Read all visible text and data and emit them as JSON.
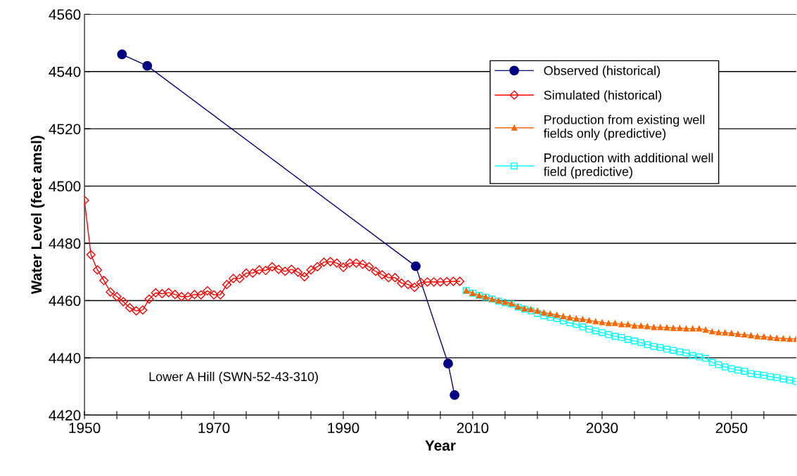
{
  "chart_data": {
    "type": "line",
    "xlabel": "Year",
    "ylabel": "Water Level (feet amsl)",
    "xlim": [
      1950,
      2060
    ],
    "xticks": [
      1950,
      {
        "value": 1955,
        "label": null
      },
      {
        "value": 1960,
        "label": null
      },
      {
        "value": 1965,
        "label": null
      },
      1970,
      {
        "value": 1975,
        "label": null
      },
      {
        "value": 1980,
        "label": null
      },
      {
        "value": 1985,
        "label": null
      },
      1990,
      {
        "value": 1995,
        "label": null
      },
      {
        "value": 2000,
        "label": null
      },
      {
        "value": 2005,
        "label": null
      },
      2010,
      {
        "value": 2015,
        "label": null
      },
      {
        "value": 2020,
        "label": null
      },
      {
        "value": 2025,
        "label": null
      },
      2030,
      {
        "value": 2035,
        "label": null
      },
      {
        "value": 2040,
        "label": null
      },
      {
        "value": 2045,
        "label": null
      },
      2050,
      {
        "value": 2055,
        "label": null
      }
    ],
    "ylim": [
      4420,
      4560
    ],
    "yticks": [
      4420,
      4440,
      4460,
      4480,
      4500,
      4520,
      4540,
      4560
    ],
    "grid": "y",
    "legend": "top right",
    "annotations": [
      "Lower A Hill (SWN-52-43-310)"
    ],
    "series": [
      {
        "name": "Observed (historical)",
        "color": "#000080",
        "marker": "circle",
        "x": [
          1955.8,
          1959.7,
          2001.2,
          2006.2,
          2007.2
        ],
        "values": [
          4546,
          4542,
          4472,
          4438,
          4427
        ]
      },
      {
        "name": "Simulated (historical)",
        "color": "#ff0000",
        "marker": "diamond",
        "x": [
          1950,
          1951,
          1952,
          1953,
          1954,
          1955,
          1956,
          1957,
          1958,
          1959,
          1960,
          1961,
          1962,
          1963,
          1964,
          1965,
          1966,
          1967,
          1968,
          1969,
          1970,
          1971,
          1972,
          1973,
          1974,
          1975,
          1976,
          1977,
          1978,
          1979,
          1980,
          1981,
          1982,
          1983,
          1984,
          1985,
          1986,
          1987,
          1988,
          1989,
          1990,
          1991,
          1992,
          1993,
          1994,
          1995,
          1996,
          1997,
          1998,
          1999,
          2000,
          2001,
          2002,
          2003,
          2004,
          2005,
          2006,
          2007,
          2008
        ],
        "values": [
          4495,
          4476,
          4470.7,
          4467,
          4463,
          4461.4,
          4459.6,
          4457.5,
          4456.4,
          4456.7,
          4460.5,
          4462.7,
          4462.4,
          4462.8,
          4462.1,
          4461.4,
          4461.4,
          4462.1,
          4462,
          4463.4,
          4462,
          4462,
          4465.6,
          4467.7,
          4467.7,
          4469.6,
          4469.6,
          4470.7,
          4470.5,
          4471.8,
          4470.9,
          4470.2,
          4470.9,
          4469.9,
          4468.3,
          4470.7,
          4471.8,
          4473.4,
          4473.6,
          4473.1,
          4471.6,
          4473.1,
          4473.1,
          4472.7,
          4471.8,
          4470.2,
          4469,
          4468,
          4468,
          4466.1,
          4465.6,
          4464.6,
          4466.3,
          4466.5,
          4466.5,
          4466.5,
          4466.6,
          4466.7,
          4466.7
        ]
      },
      {
        "name": "Production from existing well\nfields only (predictive)",
        "color": "#ff6600",
        "marker": "triangle",
        "x": [
          2009,
          2010,
          2011,
          2012,
          2013,
          2014,
          2015,
          2016,
          2017,
          2018,
          2019,
          2020,
          2021,
          2022,
          2023,
          2024,
          2025,
          2026,
          2027,
          2028,
          2029,
          2030,
          2031,
          2032,
          2033,
          2034,
          2035,
          2036,
          2037,
          2038,
          2039,
          2040,
          2041,
          2042,
          2043,
          2044,
          2045,
          2046,
          2047,
          2048,
          2049,
          2050,
          2051,
          2052,
          2053,
          2054,
          2055,
          2056,
          2057,
          2058,
          2059,
          2060
        ],
        "values": [
          4463.5,
          4462.6,
          4461.8,
          4461.3,
          4460.5,
          4460,
          4459.5,
          4459,
          4457.9,
          4457.2,
          4456.9,
          4456.4,
          4455.8,
          4455.4,
          4455,
          4454.5,
          4454.1,
          4453.7,
          4453.5,
          4453.1,
          4452.7,
          4452.4,
          4452.1,
          4452.1,
          4451.7,
          4451.7,
          4451.2,
          4451.2,
          4451,
          4450.7,
          4450.7,
          4450.6,
          4450.4,
          4450.4,
          4450.2,
          4450.2,
          4450.2,
          4449.8,
          4449.2,
          4448.9,
          4448.8,
          4448.6,
          4448.3,
          4448.1,
          4447.8,
          4447.5,
          4447.4,
          4447.1,
          4446.9,
          4446.8,
          4446.6,
          4446.6
        ]
      },
      {
        "name": "Production with additional well\nfield (predictive)",
        "color": "#00ffff",
        "marker": "square",
        "x": [
          2009,
          2010,
          2011,
          2012,
          2013,
          2014,
          2015,
          2016,
          2017,
          2018,
          2019,
          2020,
          2021,
          2022,
          2023,
          2024,
          2025,
          2026,
          2027,
          2028,
          2029,
          2030,
          2031,
          2032,
          2033,
          2034,
          2035,
          2036,
          2037,
          2038,
          2039,
          2040,
          2041,
          2042,
          2043,
          2044,
          2045,
          2046,
          2047,
          2048,
          2049,
          2050,
          2051,
          2052,
          2053,
          2054,
          2055,
          2056,
          2057,
          2058,
          2059,
          2060
        ],
        "values": [
          4463.5,
          4462.6,
          4461.8,
          4461.2,
          4460.5,
          4459.8,
          4459.2,
          4458.8,
          4457.7,
          4457,
          4456.4,
          4455.5,
          4454.7,
          4454.1,
          4453.7,
          4452.9,
          4452.2,
          4451.7,
          4450.8,
          4450,
          4449.4,
          4448.8,
          4448.1,
          4447.5,
          4447.1,
          4446.4,
          4445.9,
          4445.3,
          4444.6,
          4444,
          4443.6,
          4443,
          4442.6,
          4442.1,
          4441.7,
          4440.8,
          4440.3,
          4439.8,
          4438.4,
          4437.6,
          4436.8,
          4436.2,
          4435.7,
          4435.3,
          4434.5,
          4434.2,
          4433.9,
          4433.4,
          4433.1,
          4432.6,
          4432.2,
          4431.7
        ]
      }
    ]
  }
}
